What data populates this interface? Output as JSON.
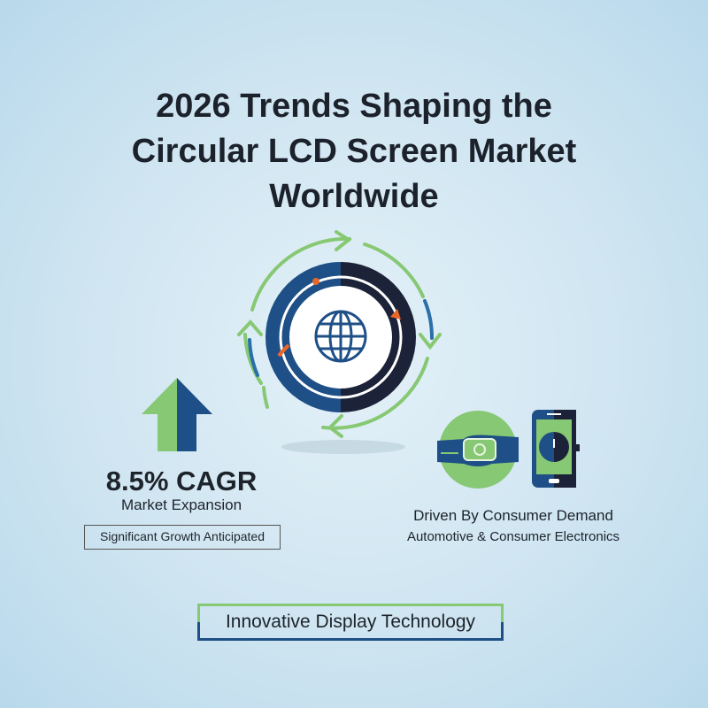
{
  "title": {
    "lines": [
      "2026 Trends Shaping the",
      "Circular LCD Screen Market",
      "Worldwide"
    ]
  },
  "growth": {
    "value": "8.5% CAGR",
    "label": "Market Expansion",
    "badge": "Significant Growth Anticipated",
    "icon": "up-arrow-icon"
  },
  "center": {
    "icon": "globe-icon",
    "cycle_icon": "circular-arrows-icon"
  },
  "demand": {
    "title": "Driven By Consumer Demand",
    "subtitle": "Automotive & Consumer Electronics",
    "icons": [
      "smartwatch-icon",
      "smartphone-icon"
    ]
  },
  "footer": {
    "label": "Innovative Display Technology"
  },
  "colors": {
    "green": "#86c873",
    "blue": "#1e4f86",
    "navy": "#1c2338",
    "orange": "#e8672a",
    "text": "#1d232b"
  }
}
